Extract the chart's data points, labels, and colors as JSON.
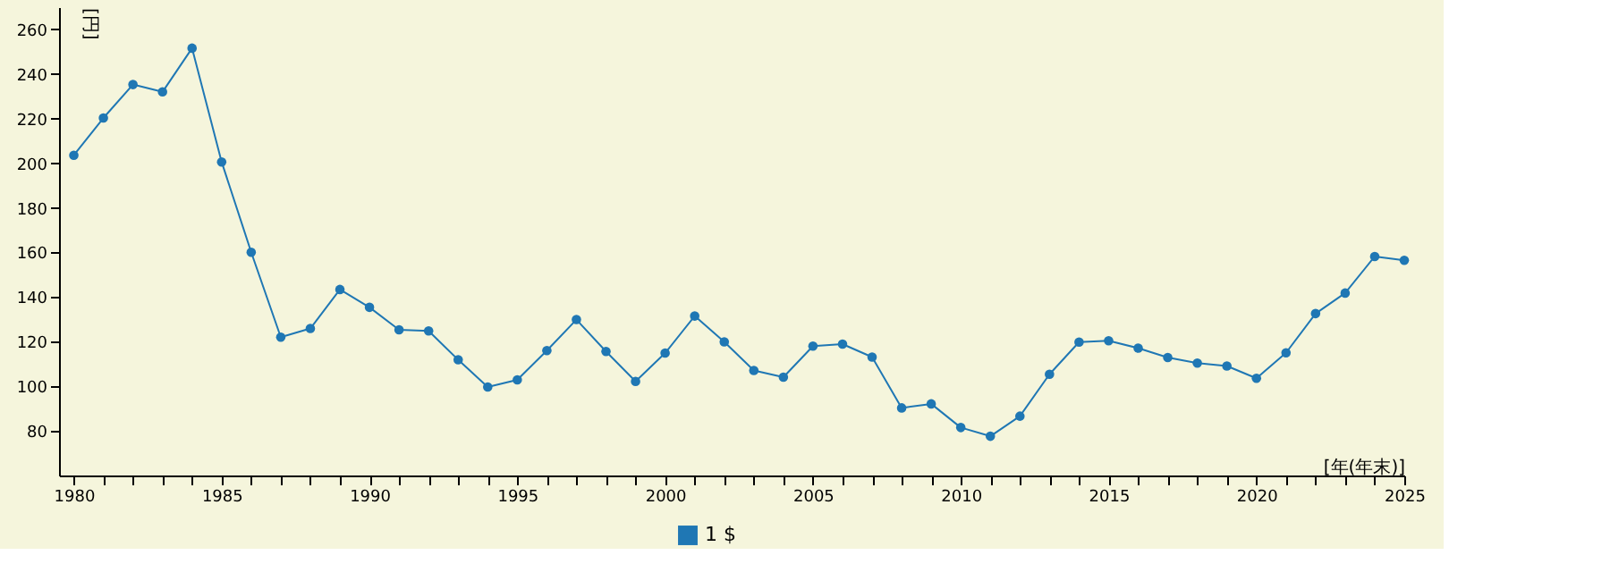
{
  "chart_data": {
    "type": "line",
    "xlabel": "[年(年末)]",
    "ylabel": "[円]",
    "x": [
      1980,
      1981,
      1982,
      1983,
      1984,
      1985,
      1986,
      1987,
      1988,
      1989,
      1990,
      1991,
      1992,
      1993,
      1994,
      1995,
      1996,
      1997,
      1998,
      1999,
      2000,
      2001,
      2002,
      2003,
      2004,
      2005,
      2006,
      2007,
      2008,
      2009,
      2010,
      2011,
      2012,
      2013,
      2014,
      2015,
      2016,
      2017,
      2018,
      2019,
      2020,
      2021,
      2022,
      2023,
      2024,
      2025
    ],
    "series": [
      {
        "name": "1 $",
        "color": "#1f77b4",
        "values": [
          203.6,
          220.3,
          235.3,
          232.0,
          251.6,
          200.6,
          160.1,
          122.0,
          125.9,
          143.4,
          135.4,
          125.3,
          124.8,
          111.9,
          99.7,
          102.9,
          116.0,
          129.9,
          115.6,
          102.2,
          114.9,
          131.5,
          119.9,
          107.1,
          104.1,
          118.0,
          118.9,
          113.1,
          90.3,
          92.1,
          81.5,
          77.6,
          86.6,
          105.4,
          119.8,
          120.4,
          117.1,
          112.9,
          110.4,
          109.1,
          103.6,
          115.0,
          132.6,
          141.8,
          158.2,
          156.5
        ]
      }
    ],
    "xlim": [
      1979.5,
      2025
    ],
    "xticks": [
      1980,
      {
        "value": 1981,
        "label": null
      },
      {
        "value": 1982,
        "label": null
      },
      {
        "value": 1983,
        "label": null
      },
      {
        "value": 1984,
        "label": null
      },
      1985,
      {
        "value": 1986,
        "label": null
      },
      {
        "value": 1987,
        "label": null
      },
      {
        "value": 1988,
        "label": null
      },
      {
        "value": 1989,
        "label": null
      },
      1990,
      {
        "value": 1991,
        "label": null
      },
      {
        "value": 1992,
        "label": null
      },
      {
        "value": 1993,
        "label": null
      },
      {
        "value": 1994,
        "label": null
      },
      1995,
      {
        "value": 1996,
        "label": null
      },
      {
        "value": 1997,
        "label": null
      },
      {
        "value": 1998,
        "label": null
      },
      {
        "value": 1999,
        "label": null
      },
      2000,
      {
        "value": 2001,
        "label": null
      },
      {
        "value": 2002,
        "label": null
      },
      {
        "value": 2003,
        "label": null
      },
      {
        "value": 2004,
        "label": null
      },
      2005,
      {
        "value": 2006,
        "label": null
      },
      {
        "value": 2007,
        "label": null
      },
      {
        "value": 2008,
        "label": null
      },
      {
        "value": 2009,
        "label": null
      },
      2010,
      {
        "value": 2011,
        "label": null
      },
      {
        "value": 2012,
        "label": null
      },
      {
        "value": 2013,
        "label": null
      },
      {
        "value": 2014,
        "label": null
      },
      2015,
      {
        "value": 2016,
        "label": null
      },
      {
        "value": 2017,
        "label": null
      },
      {
        "value": 2018,
        "label": null
      },
      {
        "value": 2019,
        "label": null
      },
      2020,
      {
        "value": 2021,
        "label": null
      },
      {
        "value": 2022,
        "label": null
      },
      {
        "value": 2023,
        "label": null
      },
      {
        "value": 2024,
        "label": null
      },
      2025
    ],
    "ylim": [
      60,
      270
    ],
    "yticks": [
      80,
      100,
      120,
      140,
      160,
      180,
      200,
      220,
      240,
      260
    ],
    "grid": false,
    "legend": "bottom",
    "marker": "circle",
    "line_style": "solid"
  }
}
